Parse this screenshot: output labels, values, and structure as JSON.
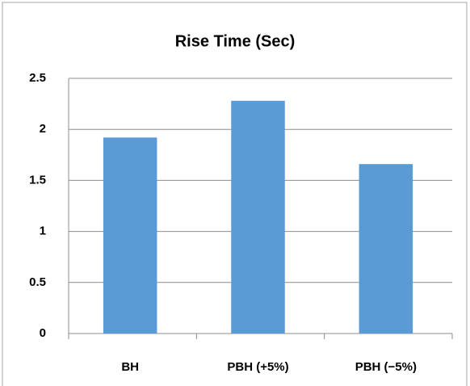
{
  "chart_data": {
    "type": "bar",
    "title": "Rise Time (Sec)",
    "categories": [
      "BH",
      "PBH (+5%)",
      "PBH (−5%)"
    ],
    "values": [
      1.92,
      2.28,
      1.66
    ],
    "color": "#5b9bd5",
    "ylim": [
      0,
      2.5
    ],
    "yticks": [
      0,
      0.5,
      1,
      1.5,
      2,
      2.5
    ],
    "grid": true
  }
}
